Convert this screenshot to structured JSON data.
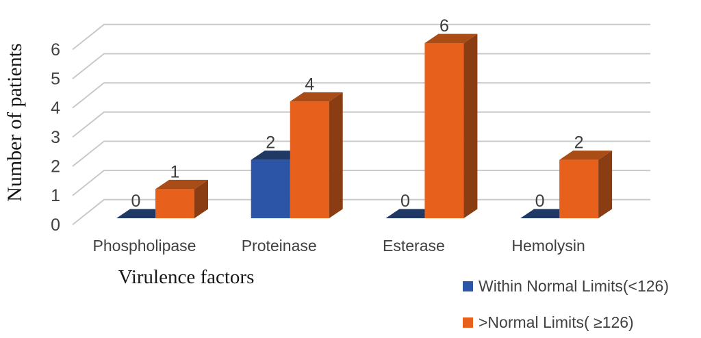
{
  "chart_data": {
    "type": "bar",
    "variant": "3d-clustered-column",
    "title": "",
    "xlabel": "Virulence factors",
    "ylabel": "Number of patients",
    "categories": [
      "Phospholipase",
      "Proteinase",
      "Esterase",
      "Hemolysin"
    ],
    "series": [
      {
        "name": "Within Normal Limits(<126)",
        "values": [
          0,
          2,
          0,
          0
        ],
        "color_front": "#2D55A7",
        "color_top": "#1F3864",
        "color_side": "#26427C"
      },
      {
        "name": ">Normal Limits( ≥126)",
        "values": [
          1,
          4,
          6,
          2
        ],
        "color_front": "#E8611C",
        "color_top": "#A94C15",
        "color_side": "#8A3D12"
      }
    ],
    "y_ticks": [
      0,
      1,
      2,
      3,
      4,
      5,
      6
    ],
    "ylim": [
      0,
      6
    ],
    "grid": true,
    "legend_position": "bottom-right",
    "colors": {
      "gridline": "#C9C9C9",
      "tick_text": "#404040",
      "data_label_text": "#3D3D3D",
      "category_text": "#404040",
      "axis_title_text": "#161616",
      "legend_text": "#404040",
      "background": "#FFFFFF"
    }
  }
}
